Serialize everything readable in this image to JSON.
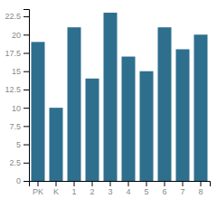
{
  "chart_data": {
    "type": "bar",
    "categories": [
      "PK",
      "K",
      "1",
      "2",
      "3",
      "4",
      "5",
      "6",
      "7",
      "8"
    ],
    "values": [
      19,
      10,
      21,
      14,
      23,
      17,
      15,
      21,
      18,
      20
    ],
    "color": "#2e6f8e",
    "ylim": [
      0,
      23.5
    ],
    "yticks": [
      0,
      2.5,
      5,
      7.5,
      10,
      12.5,
      15,
      17.5,
      20,
      22.5
    ],
    "grid": false
  }
}
